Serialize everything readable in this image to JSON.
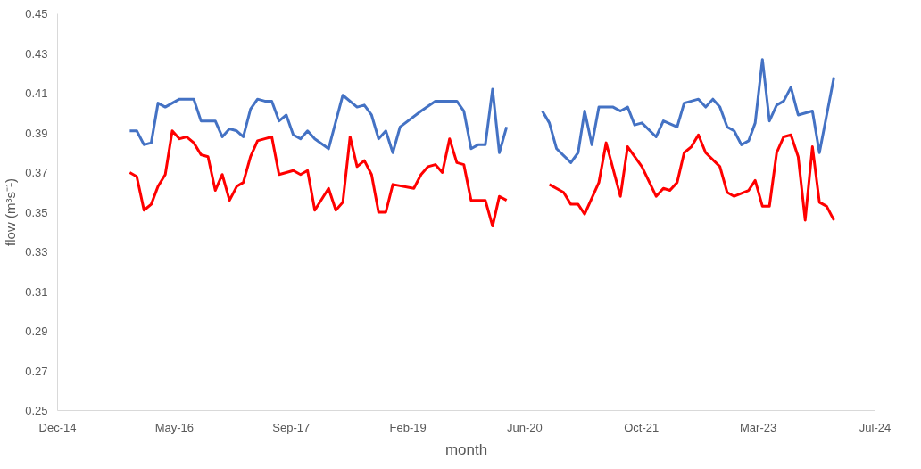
{
  "chart_data": {
    "type": "line",
    "xlabel": "month",
    "ylabel": "flow (m³s⁻¹)",
    "xlim": [
      "2014-12-27",
      "2024-07-26"
    ],
    "xticks": [
      {
        "value": "2014-12-27",
        "label": "Dec-14"
      },
      {
        "value": "2016-05-10",
        "label": "May-16"
      },
      {
        "value": "2017-09-22",
        "label": "Sep-17"
      },
      {
        "value": "2019-02-04",
        "label": "Feb-19"
      },
      {
        "value": "2020-06-17",
        "label": "Jun-20"
      },
      {
        "value": "2021-10-30",
        "label": "Oct-21"
      },
      {
        "value": "2023-03-14",
        "label": "Mar-23"
      },
      {
        "value": "2024-07-26",
        "label": "Jul-24"
      }
    ],
    "ylim": [
      0.25,
      0.45
    ],
    "yticks": [
      0.25,
      0.27,
      0.29,
      0.31,
      0.33,
      0.35,
      0.37,
      0.39,
      0.41,
      0.43,
      0.45
    ],
    "grid": false,
    "marker": "none",
    "line_style": "solid",
    "series": [
      {
        "color": "#4472c4",
        "x": [
          "2015-11",
          "2015-12",
          "2016-01",
          "2016-02",
          "2016-03",
          "2016-04",
          "2016-05",
          "2016-06",
          "2016-08",
          "2016-09",
          "2016-11",
          "2016-12",
          "2017-01",
          "2017-02",
          "2017-03",
          "2017-04",
          "2017-05",
          "2017-06",
          "2017-07",
          "2017-08",
          "2017-09",
          "2017-10",
          "2017-11",
          "2017-12",
          "2018-01",
          "2018-03",
          "2018-05",
          "2018-07",
          "2018-08",
          "2018-09",
          "2018-10",
          "2018-11",
          "2018-12",
          "2019-01",
          "2019-04",
          "2019-06",
          "2019-09",
          "2019-10",
          "2019-11",
          "2019-12",
          "2020-01",
          "2020-02",
          "2020-03",
          "2020-04",
          "2020-06",
          "2020-09",
          "2020-10",
          "2020-11",
          "2021-01",
          "2021-02",
          "2021-03",
          "2021-04",
          "2021-05",
          "2021-07",
          "2021-08",
          "2021-09",
          "2021-10",
          "2021-11",
          "2022-01",
          "2022-02",
          "2022-04",
          "2022-05",
          "2022-06",
          "2022-07",
          "2022-08",
          "2022-09",
          "2022-10",
          "2022-11",
          "2022-12",
          "2023-01",
          "2023-02",
          "2023-03",
          "2023-04",
          "2023-05",
          "2023-06",
          "2023-07",
          "2023-08",
          "2023-09",
          "2023-11",
          "2023-12",
          "2024-02"
        ],
        "values": [
          0.391,
          0.391,
          0.384,
          0.385,
          0.405,
          0.403,
          0.405,
          0.407,
          0.407,
          0.396,
          0.396,
          0.388,
          0.392,
          0.391,
          0.388,
          0.402,
          0.407,
          0.406,
          0.406,
          0.396,
          0.399,
          0.389,
          0.387,
          0.391,
          0.387,
          0.382,
          0.409,
          0.403,
          0.404,
          0.399,
          0.387,
          0.391,
          0.38,
          0.393,
          0.401,
          0.406,
          0.406,
          0.401,
          0.382,
          0.384,
          0.384,
          0.412,
          0.38,
          0.393,
          null,
          0.401,
          0.395,
          0.382,
          0.375,
          0.38,
          0.401,
          0.384,
          0.403,
          0.403,
          0.401,
          0.403,
          0.394,
          0.395,
          0.388,
          0.396,
          0.393,
          0.405,
          0.406,
          0.407,
          0.403,
          0.407,
          0.403,
          0.393,
          0.391,
          0.384,
          0.386,
          0.395,
          0.427,
          0.396,
          0.404,
          0.406,
          0.413,
          0.399,
          0.401,
          0.38,
          0.418
        ]
      },
      {
        "color": "#ff0000",
        "x": [
          "2015-11",
          "2015-12",
          "2016-01",
          "2016-02",
          "2016-03",
          "2016-04",
          "2016-05",
          "2016-06",
          "2016-07",
          "2016-08",
          "2016-09",
          "2016-10",
          "2016-11",
          "2016-12",
          "2017-01",
          "2017-02",
          "2017-03",
          "2017-04",
          "2017-05",
          "2017-06",
          "2017-07",
          "2017-08",
          "2017-09",
          "2017-10",
          "2017-11",
          "2017-12",
          "2018-01",
          "2018-03",
          "2018-04",
          "2018-05",
          "2018-06",
          "2018-07",
          "2018-08",
          "2018-09",
          "2018-10",
          "2018-11",
          "2018-12",
          "2019-03",
          "2019-04",
          "2019-05",
          "2019-06",
          "2019-07",
          "2019-08",
          "2019-09",
          "2019-10",
          "2019-11",
          "2020-01",
          "2020-02",
          "2020-03",
          "2020-04",
          "2020-06",
          "2020-10",
          "2020-12",
          "2021-01",
          "2021-02",
          "2021-03",
          "2021-05",
          "2021-06",
          "2021-08",
          "2021-09",
          "2021-11",
          "2022-01",
          "2022-02",
          "2022-03",
          "2022-04",
          "2022-05",
          "2022-06",
          "2022-07",
          "2022-08",
          "2022-10",
          "2022-11",
          "2022-12",
          "2023-02",
          "2023-03",
          "2023-04",
          "2023-05",
          "2023-06",
          "2023-07",
          "2023-08",
          "2023-09",
          "2023-10",
          "2023-11",
          "2023-12",
          "2024-01",
          "2024-02"
        ],
        "values": [
          0.37,
          0.368,
          0.351,
          0.354,
          0.363,
          0.369,
          0.391,
          0.387,
          0.388,
          0.385,
          0.379,
          0.378,
          0.361,
          0.369,
          0.356,
          0.363,
          0.365,
          0.378,
          0.386,
          0.387,
          0.388,
          0.369,
          0.37,
          0.371,
          0.369,
          0.371,
          0.351,
          0.362,
          0.351,
          0.355,
          0.388,
          0.373,
          0.376,
          0.369,
          0.35,
          0.35,
          0.364,
          0.362,
          0.369,
          0.373,
          0.374,
          0.37,
          0.387,
          0.375,
          0.374,
          0.356,
          0.356,
          0.343,
          0.358,
          0.356,
          null,
          0.364,
          0.36,
          0.354,
          0.354,
          0.349,
          0.365,
          0.385,
          0.358,
          0.383,
          0.373,
          0.358,
          0.362,
          0.361,
          0.365,
          0.38,
          0.383,
          0.389,
          0.38,
          0.373,
          0.36,
          0.358,
          0.361,
          0.366,
          0.353,
          0.353,
          0.38,
          0.388,
          0.389,
          0.378,
          0.346,
          0.383,
          0.355,
          0.353,
          0.346
        ]
      }
    ]
  }
}
